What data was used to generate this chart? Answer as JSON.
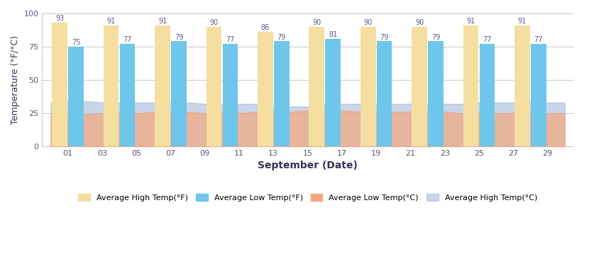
{
  "dates": [
    1,
    4,
    7,
    10,
    13,
    16,
    19,
    22,
    25,
    28
  ],
  "avg_high_f": [
    93,
    91,
    91,
    90,
    86,
    90,
    90,
    90,
    91,
    91
  ],
  "avg_low_f": [
    75,
    77,
    79,
    77,
    79,
    81,
    79,
    79,
    77,
    77
  ],
  "avg_low_c": [
    24,
    25,
    26,
    25,
    26,
    27,
    26,
    26,
    25,
    25
  ],
  "avg_high_c": [
    34,
    33,
    33,
    32,
    30,
    32,
    32,
    32,
    33,
    33
  ],
  "area_high_c_x": [
    0,
    1,
    2,
    3,
    4,
    5,
    6,
    7,
    8,
    9,
    10,
    11,
    12,
    13,
    14,
    15,
    16,
    17,
    18,
    19,
    20,
    21,
    22,
    23,
    24,
    25,
    26,
    27,
    28,
    29,
    30
  ],
  "area_high_c_y": [
    33,
    34,
    34,
    33,
    33,
    33,
    33,
    33,
    33,
    32,
    32,
    32,
    32,
    30,
    30,
    30,
    32,
    32,
    32,
    32,
    32,
    32,
    32,
    32,
    32,
    33,
    33,
    33,
    33,
    33,
    33
  ],
  "area_low_c_x": [
    0,
    1,
    2,
    3,
    4,
    5,
    6,
    7,
    8,
    9,
    10,
    11,
    12,
    13,
    14,
    15,
    16,
    17,
    18,
    19,
    20,
    21,
    22,
    23,
    24,
    25,
    26,
    27,
    28,
    29,
    30
  ],
  "area_low_c_y": [
    24,
    24,
    24,
    25,
    25,
    25,
    26,
    26,
    26,
    25,
    25,
    25,
    26,
    26,
    26,
    27,
    27,
    27,
    26,
    26,
    26,
    26,
    26,
    26,
    25,
    25,
    25,
    25,
    25,
    25,
    25
  ],
  "color_high_f": "#F5DFA0",
  "color_low_f": "#6EC6EA",
  "color_low_c": "#F5A67D",
  "color_high_c": "#9EB4D8",
  "xlabel": "September (Date)",
  "ylabel": "Temperature (°F/°C)",
  "ylim": [
    0,
    100
  ],
  "yticks": [
    0,
    25,
    50,
    75,
    100
  ],
  "xticks": [
    1,
    3,
    5,
    7,
    9,
    11,
    13,
    15,
    17,
    19,
    21,
    23,
    25,
    27,
    29
  ],
  "bg_color": "#FFFFFF",
  "plot_bg": "#FFFFFF",
  "grid_color": "#CCCCCC",
  "label_high_f": "Average High Temp(°F)",
  "label_low_f": "Average Low Temp(°F)",
  "label_low_c": "Average Low Temp(°C)",
  "label_high_c": "Average High Temp(°C)"
}
